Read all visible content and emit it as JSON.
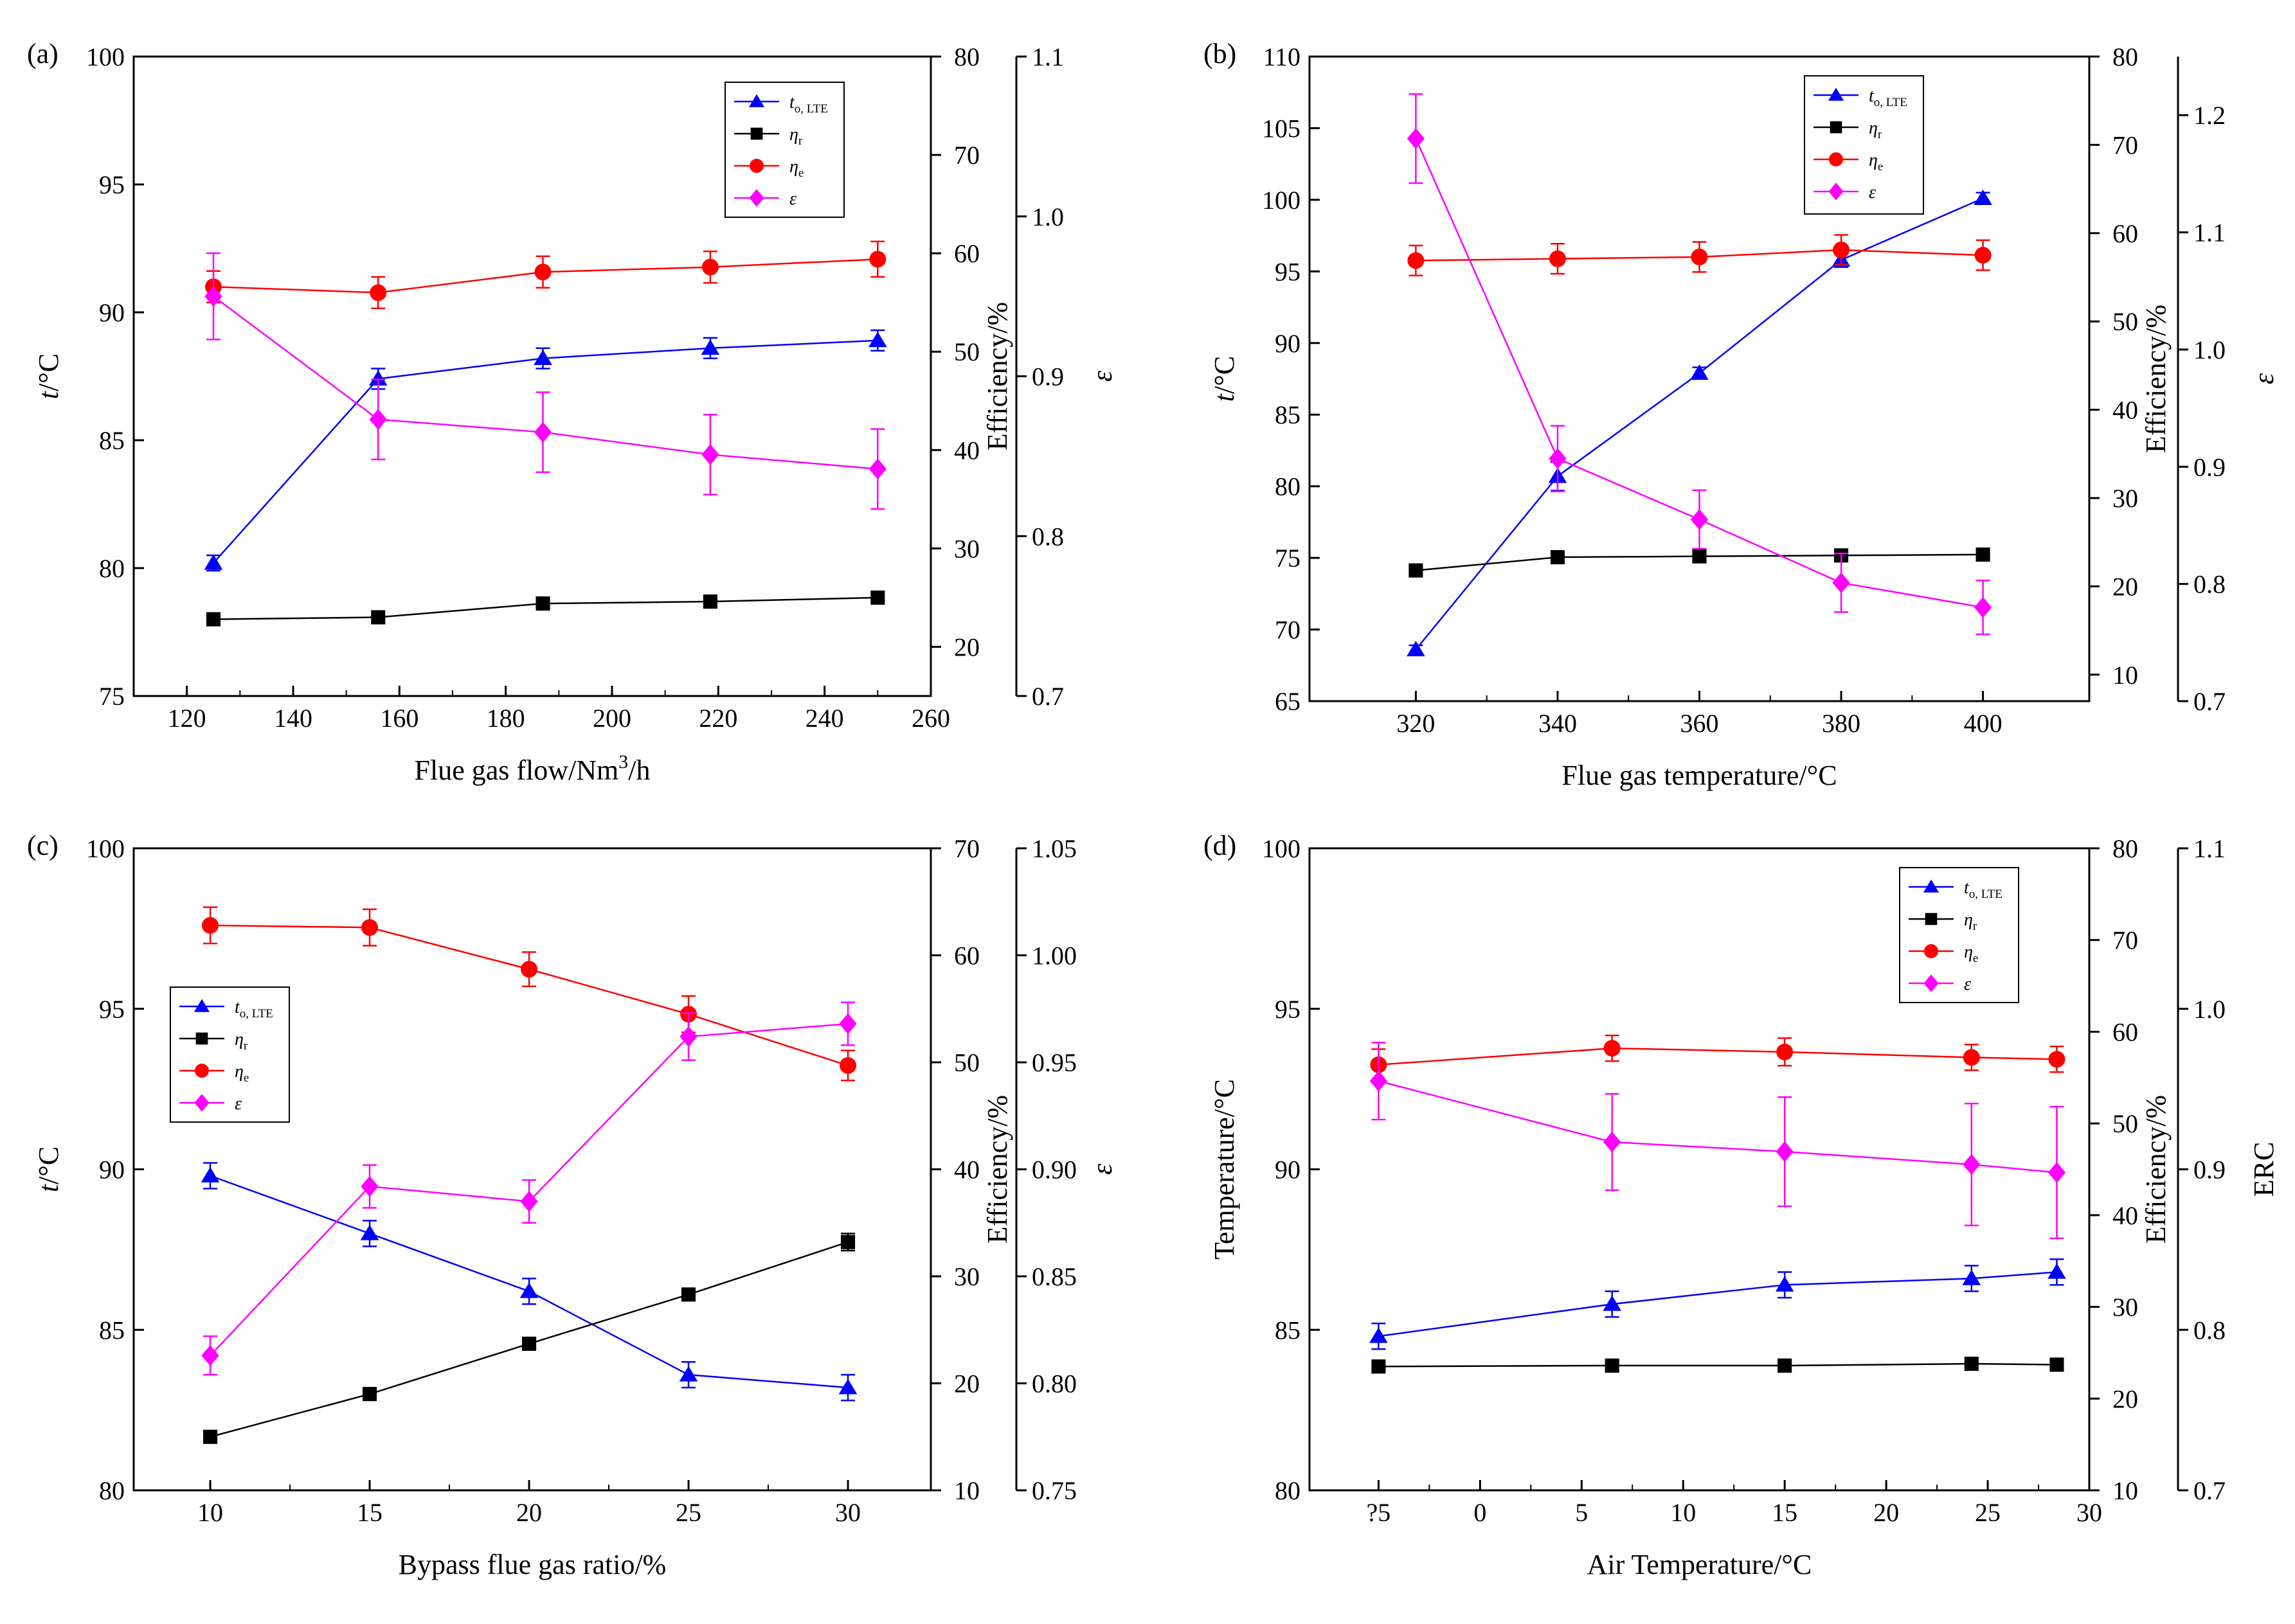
{
  "chart_data": [
    {
      "id": "a",
      "type": "line",
      "tag": "(a)",
      "xlabel": "Flue gas flow/Nm³/h",
      "xlabel_main": "Flue gas flow/Nm",
      "xlabel_sup": "3",
      "xlabel_tail": "/h",
      "xlim": [
        110,
        260
      ],
      "xticks": [
        120,
        140,
        160,
        180,
        200,
        220,
        240,
        260
      ],
      "xtick_labels": [
        "120",
        "140",
        "160",
        "180",
        "200",
        "220",
        "240",
        "260"
      ],
      "y1": {
        "label": "t/°C",
        "italic": "t",
        "rest": "/°C",
        "lim": [
          75,
          100
        ],
        "ticks": [
          75,
          80,
          85,
          90,
          95,
          100
        ],
        "tick_labels": [
          "75",
          "80",
          "85",
          "90",
          "95",
          "100"
        ]
      },
      "y2": {
        "label": "Efficiency/%",
        "lim": [
          15,
          80
        ],
        "ticks": [
          20,
          30,
          40,
          50,
          60,
          70,
          80
        ],
        "tick_labels": [
          "20",
          "30",
          "40",
          "50",
          "60",
          "70",
          "80"
        ]
      },
      "y3": {
        "label": "ε",
        "italic": true,
        "lim": [
          0.7,
          1.1
        ],
        "ticks": [
          0.7,
          0.8,
          0.9,
          1.0,
          1.1
        ],
        "tick_labels": [
          "0.7",
          "0.8",
          "0.9",
          "1.0",
          "1.1"
        ]
      },
      "x": [
        125,
        156,
        187,
        218.5,
        250
      ],
      "legend_position": "top-right",
      "series": [
        {
          "name": "t o, LTE",
          "main": "t",
          "sub": "o, LTE",
          "axis": "y1",
          "color": "#0000ff",
          "marker": "triangle",
          "values": [
            80.2,
            87.4,
            88.2,
            88.6,
            88.9
          ],
          "err": [
            0.3,
            0.4,
            0.4,
            0.4,
            0.4
          ]
        },
        {
          "name": "η r",
          "main": "η",
          "sub": "r",
          "axis": "y2",
          "color": "#000000",
          "marker": "square",
          "values": [
            22.8,
            23.0,
            24.4,
            24.6,
            25.0
          ],
          "err": [
            0,
            0,
            0,
            0,
            0
          ]
        },
        {
          "name": "η e",
          "main": "η",
          "sub": "e",
          "axis": "y2",
          "color": "#ff0000",
          "marker": "circle",
          "values": [
            56.6,
            56.0,
            58.1,
            58.6,
            59.4
          ],
          "err": [
            1.6,
            1.6,
            1.6,
            1.6,
            1.8
          ]
        },
        {
          "name": "ε",
          "main": "ε",
          "sub": "",
          "axis": "y3",
          "color": "#ff00ff",
          "marker": "diamond",
          "values": [
            0.95,
            0.873,
            0.865,
            0.851,
            0.842
          ],
          "err": [
            0.027,
            0.025,
            0.025,
            0.025,
            0.025
          ]
        }
      ]
    },
    {
      "id": "b",
      "type": "line",
      "tag": "(b)",
      "xlabel": "Flue gas temperature/°C",
      "xlabel_main": "Flue gas temperature/°C",
      "xlabel_sup": "",
      "xlabel_tail": "",
      "xlim": [
        305,
        415
      ],
      "xticks": [
        320,
        340,
        360,
        380,
        400
      ],
      "xtick_labels": [
        "320",
        "340",
        "360",
        "380",
        "400"
      ],
      "y1": {
        "label": "t/°C",
        "italic": "t",
        "rest": "/°C",
        "lim": [
          65,
          110
        ],
        "ticks": [
          65,
          70,
          75,
          80,
          85,
          90,
          95,
          100,
          105,
          110
        ],
        "tick_labels": [
          "65",
          "70",
          "75",
          "80",
          "85",
          "90",
          "95",
          "100",
          "105",
          "110"
        ]
      },
      "y2": {
        "label": "Efficiency/%",
        "lim": [
          7,
          80
        ],
        "ticks": [
          10,
          20,
          30,
          40,
          50,
          60,
          70,
          80
        ],
        "tick_labels": [
          "10",
          "20",
          "30",
          "40",
          "50",
          "60",
          "70",
          "80"
        ]
      },
      "y3": {
        "label": "ε",
        "italic": true,
        "lim": [
          0.7,
          1.25
        ],
        "ticks": [
          0.7,
          0.8,
          0.9,
          1.0,
          1.1,
          1.2
        ],
        "tick_labels": [
          "0.7",
          "0.8",
          "0.9",
          "1.0",
          "1.1",
          "1.2"
        ]
      },
      "x": [
        320,
        340,
        360,
        380,
        400
      ],
      "legend_position": "top-right",
      "series": [
        {
          "name": "t o, LTE",
          "main": "t",
          "sub": "o, LTE",
          "axis": "y1",
          "color": "#0000ff",
          "marker": "triangle",
          "values": [
            68.6,
            80.7,
            87.9,
            95.8,
            100.1
          ],
          "err": [
            0.3,
            1.0,
            0.4,
            0.5,
            0.4
          ]
        },
        {
          "name": "η r",
          "main": "η",
          "sub": "r",
          "axis": "y2",
          "color": "#000000",
          "marker": "square",
          "values": [
            21.8,
            23.3,
            23.4,
            23.5,
            23.6
          ],
          "err": [
            0,
            0,
            0,
            0,
            0
          ]
        },
        {
          "name": "η e",
          "main": "η",
          "sub": "e",
          "axis": "y2",
          "color": "#ff0000",
          "marker": "circle",
          "values": [
            56.9,
            57.1,
            57.3,
            58.1,
            57.5
          ],
          "err": [
            1.7,
            1.7,
            1.7,
            1.7,
            1.7
          ]
        },
        {
          "name": "ε",
          "main": "ε",
          "sub": "",
          "axis": "y3",
          "color": "#ff00ff",
          "marker": "diamond",
          "values": [
            1.18,
            0.907,
            0.855,
            0.801,
            0.78
          ],
          "err": [
            0.038,
            0.028,
            0.025,
            0.025,
            0.023
          ]
        }
      ]
    },
    {
      "id": "c",
      "type": "line",
      "tag": "(c)",
      "xlabel": "Bypass flue gas ratio/%",
      "xlabel_main": "Bypass flue gas ratio/%",
      "xlabel_sup": "",
      "xlabel_tail": "",
      "xlim": [
        7.6,
        32.6
      ],
      "xticks": [
        10,
        15,
        20,
        25,
        30
      ],
      "xtick_labels": [
        "10",
        "15",
        "20",
        "25",
        "30"
      ],
      "y1": {
        "label": "t/°C",
        "italic": "t",
        "rest": "/°C",
        "lim": [
          80,
          100
        ],
        "ticks": [
          80,
          85,
          90,
          95,
          100
        ],
        "tick_labels": [
          "80",
          "85",
          "90",
          "95",
          "100"
        ]
      },
      "y2": {
        "label": "Efficiency/%",
        "lim": [
          10,
          70
        ],
        "ticks": [
          10,
          20,
          30,
          40,
          50,
          60,
          70
        ],
        "tick_labels": [
          "10",
          "20",
          "30",
          "40",
          "50",
          "60",
          "70"
        ]
      },
      "y3": {
        "label": "ε",
        "italic": true,
        "lim": [
          0.75,
          1.05
        ],
        "ticks": [
          0.75,
          0.8,
          0.85,
          0.9,
          0.95,
          1.0,
          1.05
        ],
        "tick_labels": [
          "0.75",
          "0.80",
          "0.85",
          "0.90",
          "0.95",
          "1.00",
          "1.05"
        ]
      },
      "x": [
        10,
        15,
        20,
        25,
        30
      ],
      "legend_position": "middle-left",
      "series": [
        {
          "name": "t o, LTE",
          "main": "t",
          "sub": "o, LTE",
          "axis": "y1",
          "color": "#0000ff",
          "marker": "triangle",
          "values": [
            89.8,
            88.0,
            86.2,
            83.6,
            83.2
          ],
          "err": [
            0.4,
            0.4,
            0.4,
            0.4,
            0.4
          ]
        },
        {
          "name": "η r",
          "main": "η",
          "sub": "r",
          "axis": "y2",
          "color": "#000000",
          "marker": "square",
          "values": [
            15.0,
            19.0,
            23.7,
            28.3,
            33.2
          ],
          "err": [
            0,
            0,
            0,
            0,
            0.8
          ]
        },
        {
          "name": "η e",
          "main": "η",
          "sub": "e",
          "axis": "y2",
          "color": "#ff0000",
          "marker": "circle",
          "values": [
            62.8,
            62.6,
            58.7,
            54.5,
            49.7
          ],
          "err": [
            1.7,
            1.7,
            1.6,
            1.7,
            1.4
          ]
        },
        {
          "name": "ε",
          "main": "ε",
          "sub": "",
          "axis": "y3",
          "color": "#ff00ff",
          "marker": "diamond",
          "values": [
            0.813,
            0.892,
            0.885,
            0.962,
            0.968
          ],
          "err": [
            0.009,
            0.01,
            0.01,
            0.011,
            0.01
          ]
        }
      ]
    },
    {
      "id": "d",
      "type": "line",
      "tag": "(d)",
      "xlabel": "Air Temperature/°C",
      "xlabel_main": "Air Temperature/°C",
      "xlabel_sup": "",
      "xlabel_tail": "",
      "xlim": [
        -8.4,
        30
      ],
      "xticks": [
        -5,
        0,
        5,
        10,
        15,
        20,
        25,
        30
      ],
      "xtick_labels": [
        "?5",
        "0",
        "5",
        "10",
        "15",
        "20",
        "25",
        "30"
      ],
      "y1": {
        "label": "Temperature/°C",
        "italic": "",
        "rest": "Temperature/°C",
        "lim": [
          80,
          100
        ],
        "ticks": [
          80,
          85,
          90,
          95,
          100
        ],
        "tick_labels": [
          "80",
          "85",
          "90",
          "95",
          "100"
        ]
      },
      "y2": {
        "label": "Efficiency/%",
        "lim": [
          10,
          80
        ],
        "ticks": [
          10,
          20,
          30,
          40,
          50,
          60,
          70,
          80
        ],
        "tick_labels": [
          "10",
          "20",
          "30",
          "40",
          "50",
          "60",
          "70",
          "80"
        ]
      },
      "y3": {
        "label": "ERC",
        "italic": false,
        "lim": [
          0.7,
          1.1
        ],
        "ticks": [
          0.7,
          0.8,
          0.9,
          1.0,
          1.1
        ],
        "tick_labels": [
          "0.7",
          "0.8",
          "0.9",
          "1.0",
          "1.1"
        ]
      },
      "x": [
        -5,
        6.5,
        15,
        24.2,
        28.4
      ],
      "legend_position": "top-right",
      "series": [
        {
          "name": "t o, LTE",
          "main": "t",
          "sub": "o, LTE",
          "axis": "y1",
          "color": "#0000ff",
          "marker": "triangle",
          "values": [
            84.8,
            85.8,
            86.4,
            86.6,
            86.8
          ],
          "err": [
            0.4,
            0.4,
            0.4,
            0.4,
            0.4
          ]
        },
        {
          "name": "η r",
          "main": "η",
          "sub": "r",
          "axis": "y2",
          "color": "#000000",
          "marker": "square",
          "values": [
            23.5,
            23.6,
            23.6,
            23.8,
            23.7
          ],
          "err": [
            0,
            0,
            0,
            0,
            0
          ]
        },
        {
          "name": "η e",
          "main": "η",
          "sub": "e",
          "axis": "y2",
          "color": "#ff0000",
          "marker": "circle",
          "values": [
            56.4,
            58.2,
            57.8,
            57.2,
            57.0
          ],
          "err": [
            1.7,
            1.4,
            1.5,
            1.4,
            1.4
          ]
        },
        {
          "name": "ε",
          "main": "ε",
          "sub": "",
          "axis": "y3",
          "color": "#ff00ff",
          "marker": "diamond",
          "values": [
            0.955,
            0.917,
            0.911,
            0.903,
            0.898
          ],
          "err": [
            0.024,
            0.03,
            0.034,
            0.038,
            0.041
          ]
        }
      ]
    }
  ]
}
